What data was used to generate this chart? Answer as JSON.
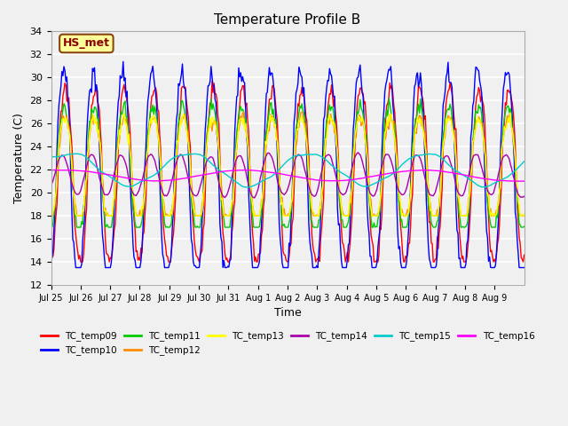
{
  "title": "Temperature Profile B",
  "xlabel": "Time",
  "ylabel": "Temperature (C)",
  "ylim": [
    12,
    34
  ],
  "yticks": [
    12,
    14,
    16,
    18,
    20,
    22,
    24,
    26,
    28,
    30,
    32,
    34
  ],
  "background_color": "#f0f0f0",
  "plot_bg_color": "#f0f0f0",
  "annotation_text": "HS_met",
  "annotation_color": "#8B0000",
  "annotation_bg": "#FFFF99",
  "annotation_border": "#8B4513",
  "series_colors": {
    "TC_temp09": "#FF0000",
    "TC_temp10": "#0000FF",
    "TC_temp11": "#00CC00",
    "TC_temp12": "#FF8C00",
    "TC_temp13": "#FFFF00",
    "TC_temp14": "#AA00AA",
    "TC_temp15": "#00CCCC",
    "TC_temp16": "#FF00FF"
  },
  "x_tick_labels": [
    "Jul 25",
    "Jul 26",
    "Jul 27",
    "Jul 28",
    "Jul 29",
    "Jul 30",
    "Jul 31",
    "Aug 1",
    "Aug 2",
    "Aug 3",
    "Aug 4",
    "Aug 5",
    "Aug 6",
    "Aug 7",
    "Aug 8",
    "Aug 9"
  ],
  "n_points": 480
}
